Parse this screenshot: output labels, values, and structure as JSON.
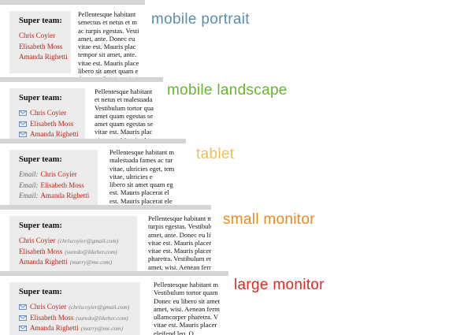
{
  "team_title": "Super team:",
  "members": [
    "Chris Coyier",
    "Elisabeth Moss",
    "Amanda Righetti"
  ],
  "email_prefix": "Email:",
  "handles": [
    "(chriscoyier@gmail.com)",
    "(suredo@likeher.com)",
    "(marry@me.com)"
  ],
  "variants": [
    {
      "label": "mobile portrait",
      "color": "#5b8eb3",
      "body": "Pellentesque habitant\nsenectus et netus et m\nac turpis egestas. Vesti\namet, ante. Donec eu\nvitae est. Mauris plac\ntempor sit amet, ante.\nvitae est. Mauris place\nlibero sit amet quam e\nAenean ultricies mi vita"
    },
    {
      "label": "mobile landscape",
      "color": "#6bb52a",
      "body": "Pellentesque habitant\net netus et malesuada\nVestibulum tortor qua\namet quam egestas se\namet quam egestas se\nvitae est. Mauris plac\nvitae est. Mauris plac"
    },
    {
      "label": "tablet",
      "color": "#e8c25e",
      "body": "Pellentesque habitant m\nmalesuada fames ac tur\nvitae, ultricies eget, tem\nvitae, ultricies e\nlibero sit amet quam eg\nest. Mauris placerat el\nest. Mauris placerat ele\nullamcorper pharetra. V"
    },
    {
      "label": "small monitor",
      "color": "#e88a1c",
      "body": "Pellentesque habitant mo\nturpis egestas. Vestibulum\namet, ante. Donec eu libe\nvitae est. Mauris placerat\nvitae est. Mauris placerat\npharetra. Vestibulum erat\namet, wisi. Aenean fermen\nTransum orci  consectetu"
    },
    {
      "label": "large monitor",
      "color": "#e0281c",
      "body": "Pellentesque habitant m\nVestibulum tortor quam\nDonec eu libero sit amet\namet, wisi. Aenean ferm\nullamcorper pharetra. V\nvitae est. Mauris placer\neleifend leo. Q\nelit eget tincidunt condi\nDonec non enim in turp"
    }
  ]
}
